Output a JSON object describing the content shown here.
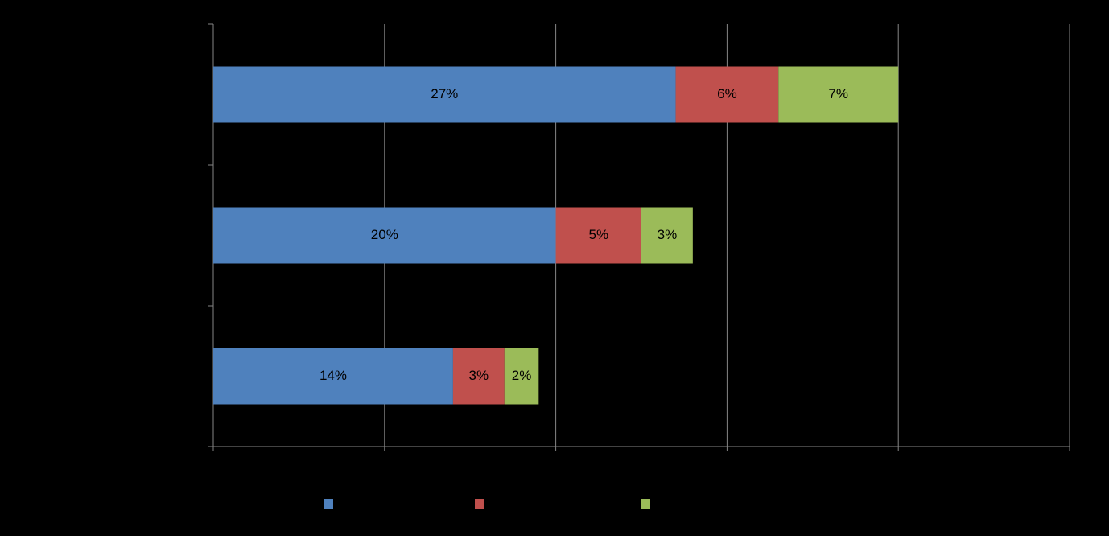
{
  "chart_data": {
    "type": "bar",
    "orientation": "horizontal",
    "stacked": true,
    "categories": [
      null,
      null,
      null
    ],
    "series": [
      {
        "color": "#4f81bd",
        "values": [
          27,
          20,
          14
        ],
        "value_labels": [
          "27%",
          "20%",
          "14%"
        ]
      },
      {
        "color": "#c0504d",
        "values": [
          6,
          5,
          3
        ],
        "value_labels": [
          "6%",
          "5%",
          "3%"
        ]
      },
      {
        "color": "#9bbb59",
        "values": [
          7,
          3,
          2
        ],
        "value_labels": [
          "7%",
          "3%",
          "2%"
        ]
      }
    ],
    "xlim": [
      0,
      50
    ],
    "xticks": [
      0,
      10,
      20,
      30,
      40,
      50
    ],
    "grid": true,
    "legend": "bottom"
  }
}
